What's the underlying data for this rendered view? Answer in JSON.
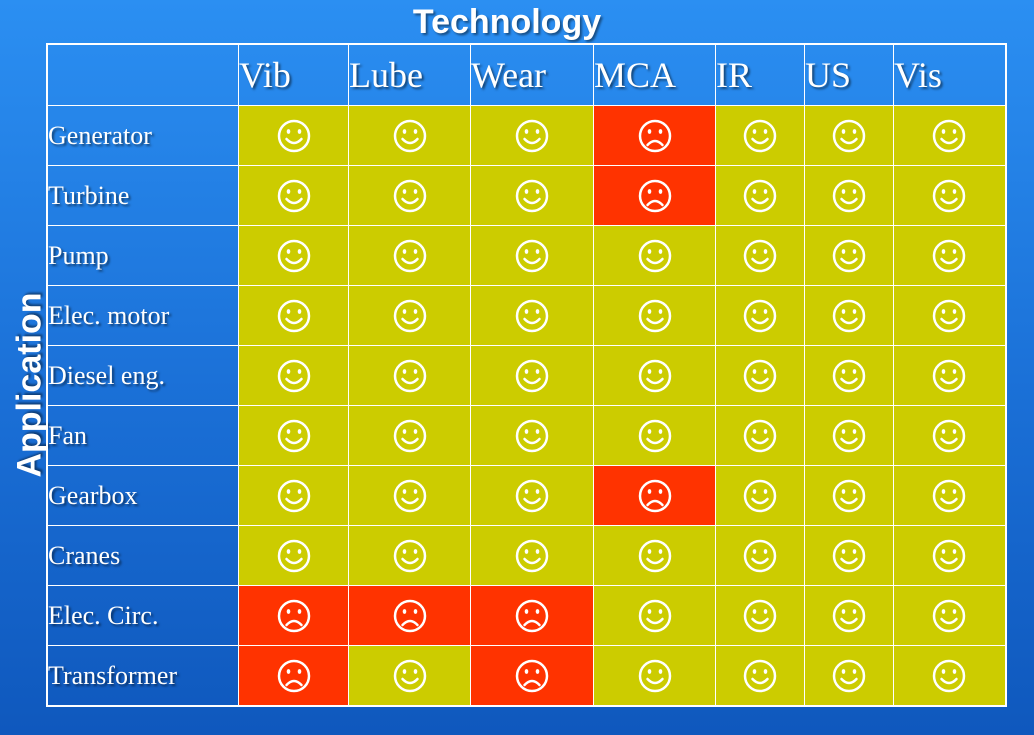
{
  "title": "Technology",
  "side_label": "Application",
  "colors": {
    "good": "#cccc00",
    "bad": "#ff3300",
    "face": "#ffffff"
  },
  "columns": [
    "Vib",
    "Lube",
    "Wear",
    "MCA",
    "IR",
    "US",
    "Vis"
  ],
  "rows": [
    {
      "label": "Generator",
      "cells": [
        "smile",
        "smile",
        "smile",
        "frown",
        "smile",
        "smile",
        "smile"
      ]
    },
    {
      "label": "Turbine",
      "cells": [
        "smile",
        "smile",
        "smile",
        "frown",
        "smile",
        "smile",
        "smile"
      ]
    },
    {
      "label": "Pump",
      "cells": [
        "smile",
        "smile",
        "smile",
        "smile",
        "smile",
        "smile",
        "smile"
      ]
    },
    {
      "label": "Elec. motor",
      "cells": [
        "smile",
        "smile",
        "smile",
        "smile",
        "smile",
        "smile",
        "smile"
      ]
    },
    {
      "label": "Diesel eng.",
      "cells": [
        "smile",
        "smile",
        "smile",
        "smile",
        "smile",
        "smile",
        "smile"
      ]
    },
    {
      "label": "Fan",
      "cells": [
        "smile",
        "smile",
        "smile",
        "smile",
        "smile",
        "smile",
        "smile"
      ]
    },
    {
      "label": "Gearbox",
      "cells": [
        "smile",
        "smile",
        "smile",
        "frown",
        "smile",
        "smile",
        "smile"
      ]
    },
    {
      "label": "Cranes",
      "cells": [
        "smile",
        "smile",
        "smile",
        "smile",
        "smile",
        "smile",
        "smile"
      ]
    },
    {
      "label": "Elec. Circ.",
      "cells": [
        "frown",
        "frown",
        "frown",
        "smile",
        "smile",
        "smile",
        "smile"
      ]
    },
    {
      "label": "Transformer",
      "cells": [
        "frown",
        "smile",
        "frown",
        "smile",
        "smile",
        "smile",
        "smile"
      ]
    }
  ]
}
